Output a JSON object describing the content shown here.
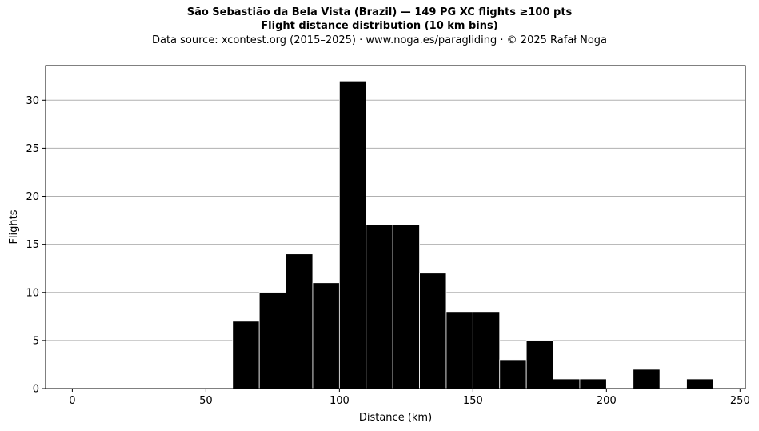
{
  "chart_data": {
    "type": "bar",
    "title": "São Sebastião da Bela Vista (Brazil)  —  149 PG XC flights ≥100 pts",
    "title2": "Flight distance distribution (10 km bins)",
    "subtitle": "Data source: xcontest.org (2015–2025)  ·  www.noga.es/paragliding  ·  © 2025 Rafał Noga",
    "xlabel": "Distance (km)",
    "ylabel": "Flights",
    "xlim": [
      -10,
      252
    ],
    "ylim": [
      0,
      33.6
    ],
    "xticks": [
      0,
      50,
      100,
      150,
      200,
      250
    ],
    "yticks": [
      0,
      5,
      10,
      15,
      20,
      25,
      30
    ],
    "grid": "y",
    "bin_width": 10,
    "bins": [
      {
        "x0": 60,
        "count": 7
      },
      {
        "x0": 70,
        "count": 10
      },
      {
        "x0": 80,
        "count": 14
      },
      {
        "x0": 90,
        "count": 11
      },
      {
        "x0": 100,
        "count": 32
      },
      {
        "x0": 110,
        "count": 17
      },
      {
        "x0": 120,
        "count": 17
      },
      {
        "x0": 130,
        "count": 12
      },
      {
        "x0": 140,
        "count": 8
      },
      {
        "x0": 150,
        "count": 8
      },
      {
        "x0": 160,
        "count": 3
      },
      {
        "x0": 170,
        "count": 5
      },
      {
        "x0": 180,
        "count": 1
      },
      {
        "x0": 190,
        "count": 1
      },
      {
        "x0": 210,
        "count": 2
      },
      {
        "x0": 230,
        "count": 1
      }
    ],
    "bar_color": "#000000",
    "bar_edge_color": "#ffffff",
    "grid_color": "#b0b0b0"
  }
}
